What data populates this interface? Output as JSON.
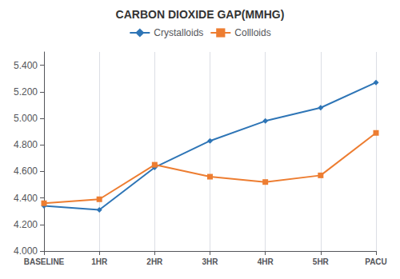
{
  "chart_data": {
    "type": "line",
    "title": "CARBON DIOXIDE GAP(MMHG)",
    "categories": [
      "BASELINE",
      "1HR",
      "2HR",
      "3HR",
      "4HR",
      "5HR",
      "PACU"
    ],
    "series": [
      {
        "name": "Crystalloids",
        "color": "#2E75B6",
        "marker": "diamond",
        "values": [
          4.34,
          4.31,
          4.63,
          4.83,
          4.98,
          5.08,
          5.27
        ]
      },
      {
        "name": "Collloids",
        "color": "#ED7D31",
        "marker": "square",
        "values": [
          4.36,
          4.39,
          4.65,
          4.56,
          4.52,
          4.57,
          4.89
        ]
      }
    ],
    "ylim": [
      4.0,
      5.5
    ],
    "yticks": [
      {
        "value": 4.0,
        "label": "4.000"
      },
      {
        "value": 4.2,
        "label": "4.200"
      },
      {
        "value": 4.4,
        "label": "4.400"
      },
      {
        "value": 4.6,
        "label": "4.600"
      },
      {
        "value": 4.8,
        "label": "4.800"
      },
      {
        "value": 5.0,
        "label": "5.000"
      },
      {
        "value": 5.2,
        "label": "5.200"
      },
      {
        "value": 5.4,
        "label": "5.400"
      }
    ],
    "grid": "x",
    "legend": "top"
  }
}
